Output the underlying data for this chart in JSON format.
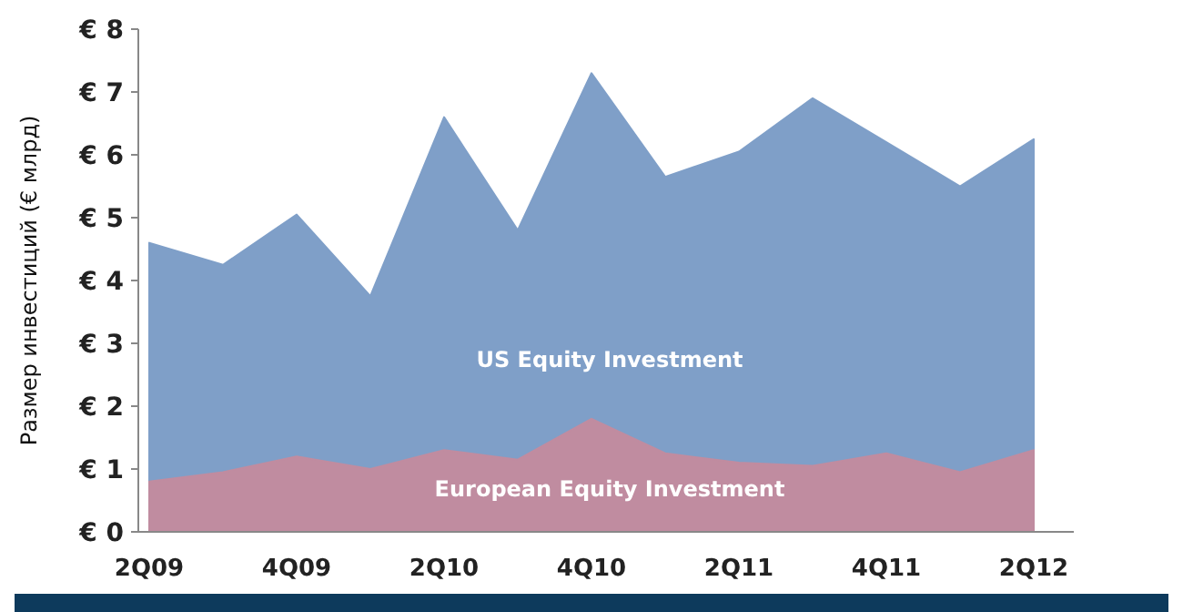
{
  "chart_data": {
    "type": "area",
    "ylabel": "Размер инвестиций (€ млрд)",
    "categories": [
      "2Q09",
      null,
      "4Q09",
      null,
      "2Q10",
      null,
      "4Q10",
      null,
      "2Q11",
      null,
      "4Q11",
      null,
      "2Q12"
    ],
    "series": [
      {
        "name": "US Equity Investment",
        "color": "#7f9fc8",
        "values": [
          4.6,
          4.25,
          5.05,
          3.75,
          6.6,
          4.8,
          7.3,
          5.65,
          6.05,
          6.9,
          6.2,
          5.5,
          6.25
        ]
      },
      {
        "name": "European Equity Investment",
        "color": "#c08ca0",
        "values": [
          0.8,
          0.95,
          1.2,
          1.0,
          1.3,
          1.15,
          1.8,
          1.25,
          1.1,
          1.05,
          1.25,
          0.95,
          1.3
        ]
      }
    ],
    "ylim": [
      0,
      8
    ],
    "yticks": [
      {
        "value": 0,
        "label": "€ 0"
      },
      {
        "value": 1,
        "label": "€ 1"
      },
      {
        "value": 2,
        "label": "€ 2"
      },
      {
        "value": 3,
        "label": "€ 3"
      },
      {
        "value": 4,
        "label": "€ 4"
      },
      {
        "value": 5,
        "label": "€ 5"
      },
      {
        "value": 6,
        "label": "€ 6"
      },
      {
        "value": 7,
        "label": "€ 7"
      },
      {
        "value": 8,
        "label": "€ 8"
      }
    ],
    "grid": false,
    "legend": false
  }
}
